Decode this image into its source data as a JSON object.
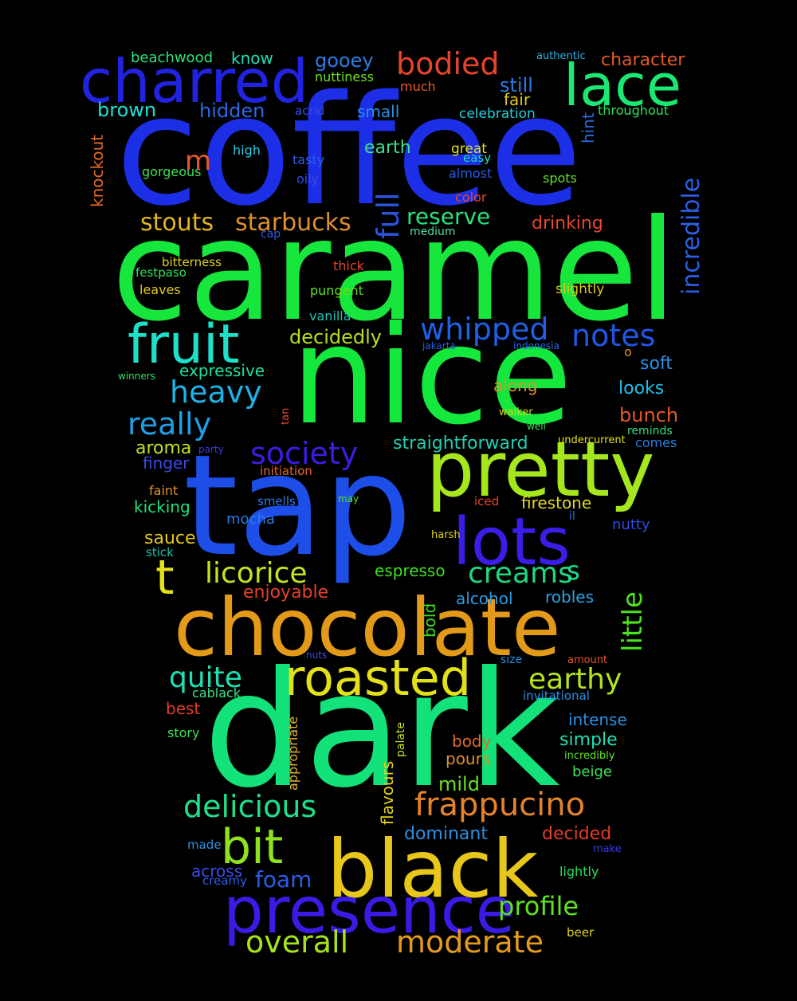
{
  "words": [
    {
      "text": "coffee",
      "color": "#1c2fe6"
    },
    {
      "text": "caramel",
      "color": "#17e63d"
    },
    {
      "text": "nice",
      "color": "#14e83d"
    },
    {
      "text": "tap",
      "color": "#1d4fe8"
    },
    {
      "text": "dark",
      "color": "#13e27a"
    },
    {
      "text": "chocolate",
      "color": "#e39a19"
    },
    {
      "text": "black",
      "color": "#e7c71a"
    },
    {
      "text": "pretty",
      "color": "#a5e61d"
    },
    {
      "text": "lots",
      "color": "#3a1ee8"
    },
    {
      "text": "presence",
      "color": "#3a1be6"
    },
    {
      "text": "charred",
      "color": "#2123e0"
    },
    {
      "text": "lace",
      "color": "#1ae873"
    },
    {
      "text": "fruit",
      "color": "#1ee0c8"
    },
    {
      "text": "roasted",
      "color": "#e3e01a"
    },
    {
      "text": "bit",
      "color": "#8ee31c"
    },
    {
      "text": "bodied",
      "color": "#e5452a"
    },
    {
      "text": "whipped",
      "color": "#1f5fe3"
    },
    {
      "text": "notes",
      "color": "#2056e6"
    },
    {
      "text": "heavy",
      "color": "#1fb2e6"
    },
    {
      "text": "really",
      "color": "#1f9fe6"
    },
    {
      "text": "society",
      "color": "#3a1ee0"
    },
    {
      "text": "frappucino",
      "color": "#e5832a"
    },
    {
      "text": "delicious",
      "color": "#1ee08a"
    },
    {
      "text": "licorice",
      "color": "#c1e41d"
    },
    {
      "text": "creams",
      "color": "#1ed880"
    },
    {
      "text": "quite",
      "color": "#1ee0b4"
    },
    {
      "text": "earthy",
      "color": "#b3e41c"
    },
    {
      "text": "overall",
      "color": "#a5e41d"
    },
    {
      "text": "moderate",
      "color": "#e59a1d"
    },
    {
      "text": "profile",
      "color": "#5ee41d"
    },
    {
      "text": "stouts",
      "color": "#e3b51a"
    },
    {
      "text": "starbucks",
      "color": "#e0902a"
    },
    {
      "text": "incredible",
      "color": "#2a60e6"
    },
    {
      "text": "little",
      "color": "#4be41d"
    },
    {
      "text": "full",
      "color": "#2a55e0"
    },
    {
      "text": "reserve",
      "color": "#2ae07a"
    },
    {
      "text": "bunch",
      "color": "#e5582a"
    },
    {
      "text": "decidedly",
      "color": "#b8e01d"
    },
    {
      "text": "straightforward",
      "color": "#1ed0b2"
    },
    {
      "text": "aroma",
      "color": "#c2e01d"
    },
    {
      "text": "gooey",
      "color": "#2a7ce6"
    },
    {
      "text": "still",
      "color": "#2a7ce6"
    },
    {
      "text": "brown",
      "color": "#1ee0d8"
    },
    {
      "text": "hidden",
      "color": "#2a6ae6"
    },
    {
      "text": "character",
      "color": "#e5582a"
    },
    {
      "text": "sauce",
      "color": "#e3c81a"
    },
    {
      "text": "mocha",
      "color": "#2a7ce6"
    },
    {
      "text": "espresso",
      "color": "#3ee01d"
    },
    {
      "text": "enjoyable",
      "color": "#e5422a"
    },
    {
      "text": "alcohol",
      "color": "#2a9ce6"
    },
    {
      "text": "robles",
      "color": "#2aa8e6"
    },
    {
      "text": "dominant",
      "color": "#2a90e6"
    },
    {
      "text": "decided",
      "color": "#e53a2a"
    },
    {
      "text": "foam",
      "color": "#2a5ee6"
    },
    {
      "text": "mild",
      "color": "#6ee01d"
    },
    {
      "text": "pours",
      "color": "#e0902a"
    },
    {
      "text": "body",
      "color": "#e5682a"
    },
    {
      "text": "simple",
      "color": "#1ee0b2"
    },
    {
      "text": "intense",
      "color": "#2a90e6"
    },
    {
      "text": "firestone",
      "color": "#e3d81a"
    },
    {
      "text": "nutty",
      "color": "#2a4ce6"
    },
    {
      "text": "along",
      "color": "#e0902a"
    },
    {
      "text": "looks",
      "color": "#1ec0e6"
    },
    {
      "text": "soft",
      "color": "#2a90e6"
    },
    {
      "text": "expressive",
      "color": "#1ee09c"
    },
    {
      "text": "kicking",
      "color": "#1ee07a"
    },
    {
      "text": "finger",
      "color": "#3a4ae6"
    },
    {
      "text": "bold",
      "color": "#3ee01d"
    },
    {
      "text": "flavours",
      "color": "#e3d01a"
    },
    {
      "text": "appropriate",
      "color": "#e5b82a"
    },
    {
      "text": "palate",
      "color": "#c2e01d"
    },
    {
      "text": "knockout",
      "color": "#e5682a"
    },
    {
      "text": "earth",
      "color": "#3ee08a"
    },
    {
      "text": "drinking",
      "color": "#e5482a"
    },
    {
      "text": "beachwood",
      "color": "#2ae07a"
    },
    {
      "text": "know",
      "color": "#1ee0b2"
    },
    {
      "text": "nuttiness",
      "color": "#6ee01d"
    },
    {
      "text": "much",
      "color": "#e5582a"
    },
    {
      "text": "authentic",
      "color": "#2ab0e6"
    },
    {
      "text": "small",
      "color": "#2a90e6"
    },
    {
      "text": "fair",
      "color": "#e3c81a"
    },
    {
      "text": "celebration",
      "color": "#1ed0d8"
    },
    {
      "text": "throughout",
      "color": "#2ae05a"
    },
    {
      "text": "acrid",
      "color": "#3a4ae6"
    },
    {
      "text": "hint",
      "color": "#2a6ae6"
    },
    {
      "text": "great",
      "color": "#e0e01a"
    },
    {
      "text": "easy",
      "color": "#1ee0c8"
    },
    {
      "text": "high",
      "color": "#1ed0e6"
    },
    {
      "text": "tasty",
      "color": "#2a5ee6"
    },
    {
      "text": "almost",
      "color": "#2a5ee6"
    },
    {
      "text": "spots",
      "color": "#5ee01d"
    },
    {
      "text": "gorgeous",
      "color": "#3ee05a"
    },
    {
      "text": "oily",
      "color": "#3a4ae6"
    },
    {
      "text": "color",
      "color": "#e5482a"
    },
    {
      "text": "medium",
      "color": "#4ee0a0"
    },
    {
      "text": "cap",
      "color": "#2a5ee6"
    },
    {
      "text": "bitterness",
      "color": "#e0d01a"
    },
    {
      "text": "festpaso",
      "color": "#2ae05a"
    },
    {
      "text": "thick",
      "color": "#e5482a"
    },
    {
      "text": "leaves",
      "color": "#e0c81a"
    },
    {
      "text": "pungent",
      "color": "#5ee01d"
    },
    {
      "text": "slightly",
      "color": "#e0c81a"
    },
    {
      "text": "vanilla",
      "color": "#1ec0b2"
    },
    {
      "text": "jakarta",
      "color": "#2a5ee6"
    },
    {
      "text": "indonesia",
      "color": "#2a6ae6"
    },
    {
      "text": "o",
      "color": "#e0902a"
    },
    {
      "text": "winners",
      "color": "#2ae05a"
    },
    {
      "text": "tan",
      "color": "#e5482a"
    },
    {
      "text": "walker",
      "color": "#e0d01a"
    },
    {
      "text": "well",
      "color": "#3ee05a"
    },
    {
      "text": "reminds",
      "color": "#2ae07a"
    },
    {
      "text": "undercurrent",
      "color": "#e0e01a"
    },
    {
      "text": "comes",
      "color": "#2a7ce6"
    },
    {
      "text": "party",
      "color": "#3a3ae6"
    },
    {
      "text": "initiation",
      "color": "#e5682a"
    },
    {
      "text": "faint",
      "color": "#e0902a"
    },
    {
      "text": "smells",
      "color": "#2a7ce6"
    },
    {
      "text": "may",
      "color": "#5ee01d"
    },
    {
      "text": "iced",
      "color": "#e5422a"
    },
    {
      "text": "il",
      "color": "#2a6ae6"
    },
    {
      "text": "harsh",
      "color": "#e0d01a"
    },
    {
      "text": "stick",
      "color": "#1ec0b2"
    },
    {
      "text": "nuts",
      "color": "#3a4ae6"
    },
    {
      "text": "size",
      "color": "#2a90e6"
    },
    {
      "text": "amount",
      "color": "#e5582a"
    },
    {
      "text": "cablack",
      "color": "#3ee08a"
    },
    {
      "text": "invitational",
      "color": "#2a90e6"
    },
    {
      "text": "best",
      "color": "#e53a2a"
    },
    {
      "text": "story",
      "color": "#3ee05a"
    },
    {
      "text": "beige",
      "color": "#3ee05a"
    },
    {
      "text": "incredibly",
      "color": "#5ee01d"
    },
    {
      "text": "made",
      "color": "#2a90e6"
    },
    {
      "text": "make",
      "color": "#3a3ae6"
    },
    {
      "text": "across",
      "color": "#3a4ae6"
    },
    {
      "text": "creamy",
      "color": "#2a5ee6"
    },
    {
      "text": "lightly",
      "color": "#2ae05a"
    },
    {
      "text": "beer",
      "color": "#e0d01a"
    },
    {
      "text": "m",
      "color": "#e55a2a"
    },
    {
      "text": "t",
      "color": "#e3e01a"
    },
    {
      "text": "s",
      "color": "#1ee08a"
    }
  ]
}
